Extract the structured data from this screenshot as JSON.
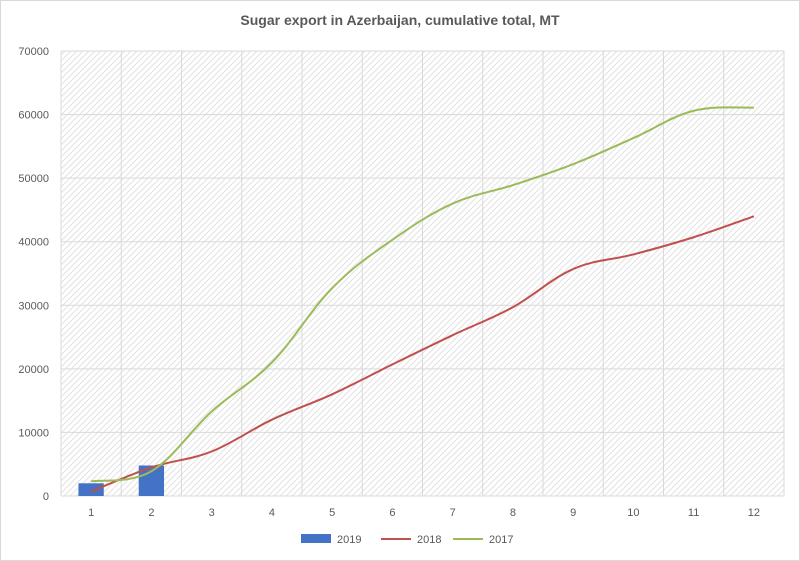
{
  "chart_data": {
    "type": "line",
    "title": "Sugar export in Azerbaijan, cumulative total, MT",
    "xlabel": "",
    "ylabel": "",
    "categories": [
      "1",
      "2",
      "3",
      "4",
      "5",
      "6",
      "7",
      "8",
      "9",
      "10",
      "11",
      "12"
    ],
    "ylim": [
      0,
      70000
    ],
    "yticks": [
      0,
      10000,
      20000,
      30000,
      40000,
      50000,
      60000,
      70000
    ],
    "grid": true,
    "legend_position": "bottom",
    "series": [
      {
        "name": "2019",
        "kind": "bar",
        "color": "#4472C4",
        "values": [
          2000,
          4800,
          null,
          null,
          null,
          null,
          null,
          null,
          null,
          null,
          null,
          null
        ]
      },
      {
        "name": "2018",
        "kind": "line",
        "color": "#C0504D",
        "values": [
          700,
          4500,
          7000,
          12000,
          16000,
          20700,
          25300,
          29700,
          35700,
          38000,
          40700,
          44000
        ]
      },
      {
        "name": "2017",
        "kind": "line",
        "color": "#9BBB59",
        "values": [
          2300,
          3900,
          13300,
          21000,
          32700,
          40300,
          46000,
          48900,
          52200,
          56300,
          60600,
          61100
        ]
      }
    ]
  }
}
